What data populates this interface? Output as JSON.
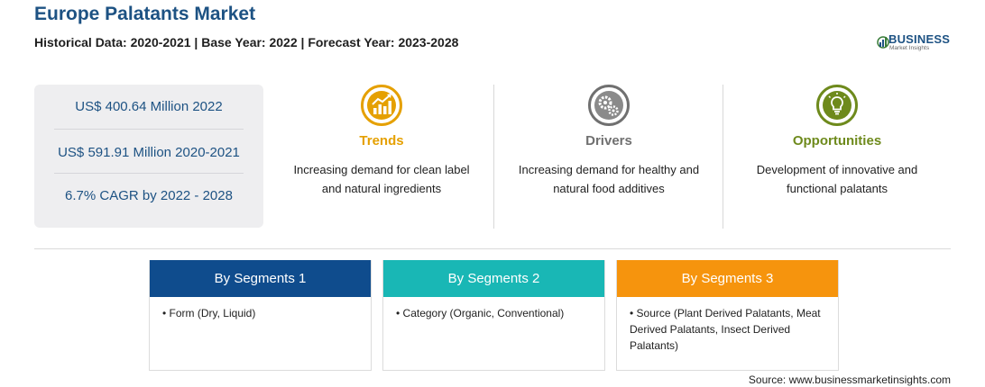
{
  "header": {
    "title": "Europe Palatants Market",
    "subtitle": "Historical Data: 2020-2021 | Base Year: 2022 | Forecast Year: 2023-2028"
  },
  "logo": {
    "name": "BUSINESS",
    "tagline": "Market Insights",
    "icon": "globe-bars-icon"
  },
  "stats": [
    "US$ 400.64 Million 2022",
    "US$ 591.91 Million 2020-2021",
    "6.7% CAGR by 2022 - 2028"
  ],
  "features": [
    {
      "icon": "trend-chart-icon",
      "title": "Trends",
      "description_line1": "Increasing demand for clean label",
      "description_line2": "and natural ingredients",
      "color": "#e5a000"
    },
    {
      "icon": "gears-icon",
      "title": "Drivers",
      "description_line1": "Increasing demand for healthy and",
      "description_line2": "natural food additives",
      "color": "#707070"
    },
    {
      "icon": "lightbulb-icon",
      "title": "Opportunities",
      "description_line1": "Development of innovative and",
      "description_line2": "functional palatants",
      "color": "#6e8a1c"
    }
  ],
  "segments": [
    {
      "title": "By Segments 1",
      "body": "• Form (Dry, Liquid)",
      "color": "#0f4c8d"
    },
    {
      "title": "By Segments 2",
      "body": "• Category (Organic, Conventional)",
      "color": "#19b7b5"
    },
    {
      "title": "By Segments 3",
      "body": "• Source (Plant Derived Palatants, Meat Derived Palatants, Insect Derived Palatants)",
      "color": "#f6940d"
    }
  ],
  "source": "Source: www.businessmarketinsights.com"
}
